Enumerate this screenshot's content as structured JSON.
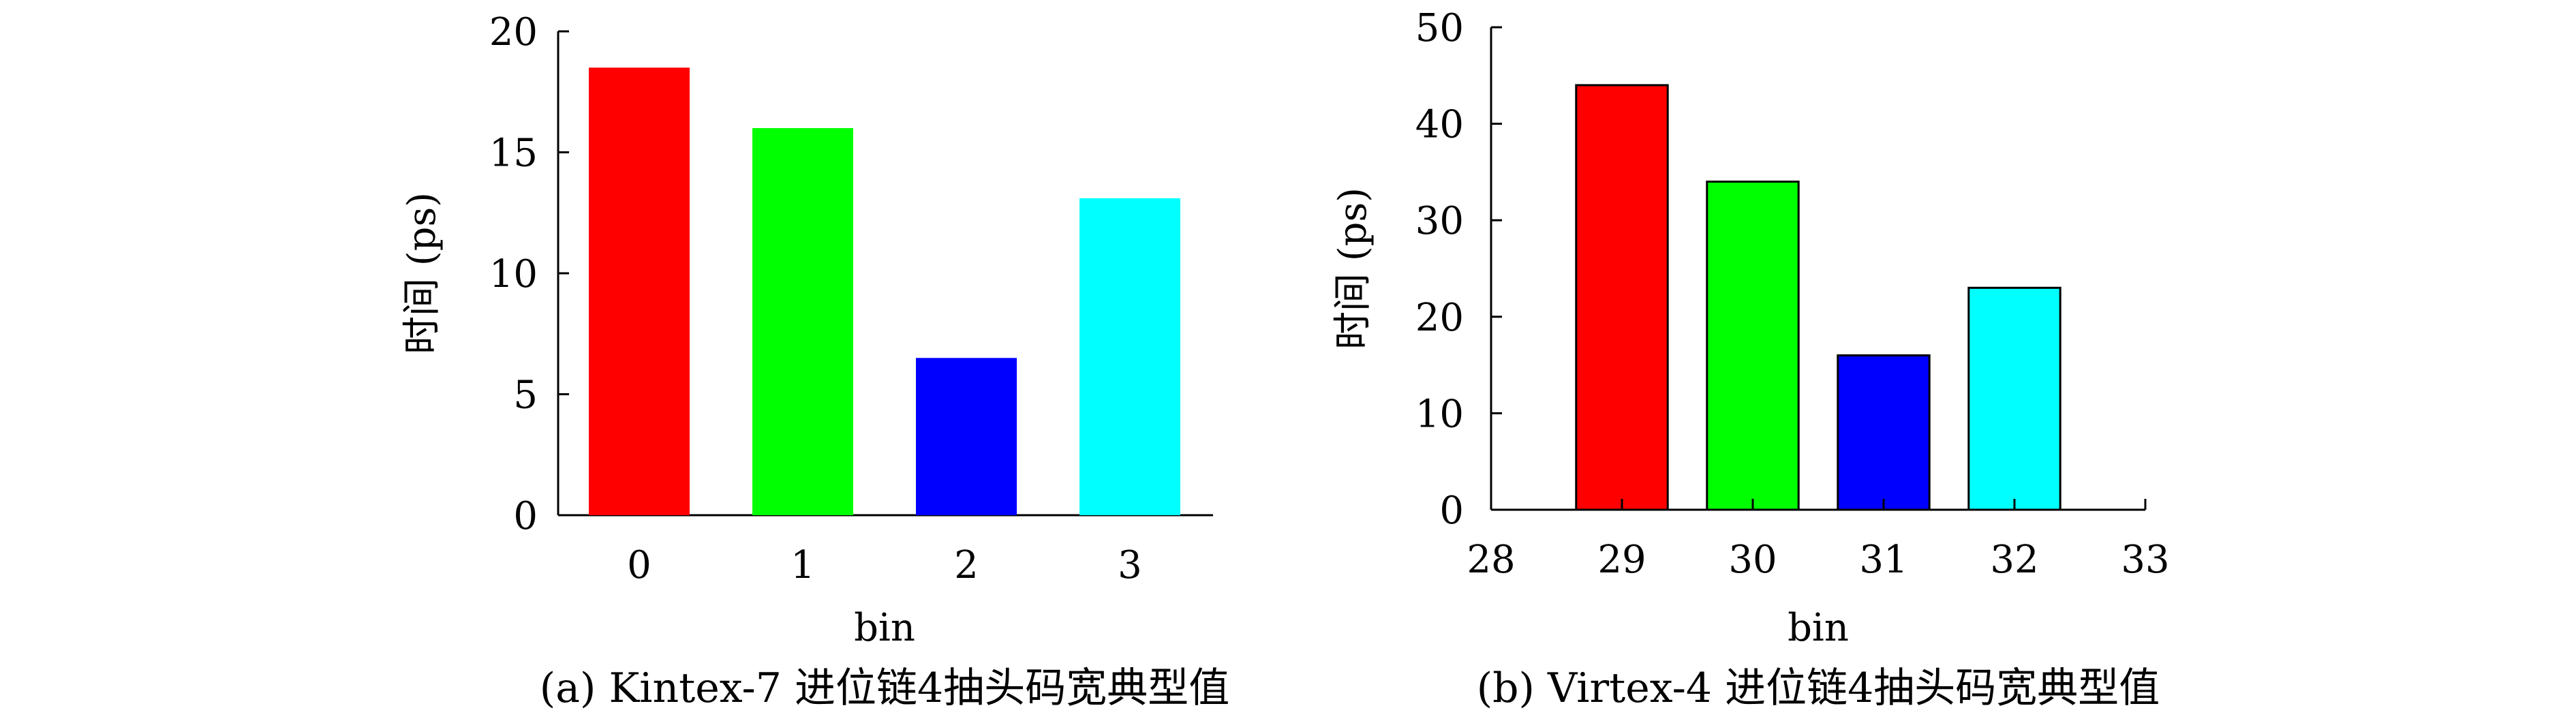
{
  "chart_data": [
    {
      "type": "bar",
      "categories": [
        "0",
        "1",
        "2",
        "3"
      ],
      "values": [
        18.5,
        16.0,
        6.5,
        13.1
      ],
      "colors": [
        "#ff0000",
        "#00ff00",
        "#0000ff",
        "#00ffff"
      ],
      "xlabel": "bin",
      "ylabel": "时间 (ps)",
      "ylim": [
        0,
        20
      ],
      "yticks": [
        "0",
        "5",
        "10",
        "15",
        "20"
      ],
      "caption": "(a) Kintex-7 进位链4抽头码宽典型值",
      "bar_outline": false
    },
    {
      "type": "bar",
      "categories": [
        "29",
        "30",
        "31",
        "32"
      ],
      "values": [
        44,
        34,
        16,
        23
      ],
      "colors": [
        "#ff0000",
        "#00ff00",
        "#0000ff",
        "#00ffff"
      ],
      "xlabel": "bin",
      "ylabel": "时间 (ps)",
      "xlim": [
        28,
        33
      ],
      "xticks": [
        "28",
        "29",
        "30",
        "31",
        "32",
        "33"
      ],
      "ylim": [
        0,
        50
      ],
      "yticks": [
        "0",
        "10",
        "20",
        "30",
        "40",
        "50"
      ],
      "caption": "(b) Virtex-4 进位链4抽头码宽典型值",
      "bar_outline": true
    }
  ]
}
